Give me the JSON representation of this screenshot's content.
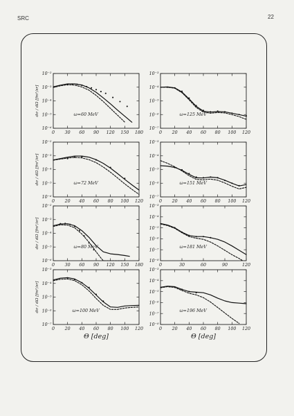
{
  "page": {
    "header_left": "SRC",
    "page_number": "22"
  },
  "chart_data": [
    {
      "type": "line",
      "annotation": "ω=60 MeV",
      "ylabel": "dσ / dΩ [fm²/sr]",
      "xlabel": "",
      "xlim": [
        0,
        180
      ],
      "ylim_exp": [
        -6,
        -2
      ],
      "log_y": true,
      "xticks": [
        0,
        30,
        60,
        90,
        120,
        150,
        180
      ],
      "yticks": [
        "10⁻²",
        "10⁻³",
        "10⁻⁴",
        "10⁻⁵",
        "10⁻⁶"
      ],
      "series": [
        {
          "style": "solid",
          "x": [
            0,
            15,
            30,
            45,
            60,
            75,
            90,
            105,
            120,
            135,
            150,
            165
          ],
          "log10_y": [
            -2.97,
            -2.85,
            -2.76,
            -2.76,
            -2.84,
            -3.05,
            -3.37,
            -3.78,
            -4.22,
            -4.68,
            -5.12,
            -5.56
          ]
        },
        {
          "style": "dashed",
          "x": [
            0,
            15,
            30,
            45,
            60,
            75,
            90,
            105,
            120,
            135,
            150
          ],
          "log10_y": [
            -3.02,
            -2.9,
            -2.82,
            -2.85,
            -2.98,
            -3.22,
            -3.6,
            -4.05,
            -4.55,
            -5.05,
            -5.55
          ]
        },
        {
          "style": "points",
          "x": [
            30,
            40,
            50,
            60,
            70,
            80,
            90,
            100,
            110,
            125,
            140,
            155
          ],
          "log10_y": [
            -2.82,
            -2.78,
            -2.79,
            -2.86,
            -2.96,
            -3.05,
            -3.18,
            -3.32,
            -3.45,
            -3.75,
            -4.05,
            -4.4
          ]
        }
      ]
    },
    {
      "type": "line",
      "annotation": "ω=125 MeV",
      "ylabel": "",
      "xlabel": "",
      "xlim": [
        0,
        120
      ],
      "ylim_exp": [
        -7,
        -3
      ],
      "log_y": true,
      "xticks": [
        0,
        20,
        40,
        60,
        80,
        100,
        120
      ],
      "yticks": [
        "10⁻³",
        "10⁻⁴",
        "10⁻⁵",
        "10⁻⁶",
        "10⁻⁷"
      ],
      "series": [
        {
          "style": "solid",
          "x": [
            0,
            10,
            20,
            30,
            40,
            50,
            60,
            70,
            80,
            90,
            100,
            110,
            120
          ],
          "log10_y": [
            -4.0,
            -3.98,
            -4.05,
            -4.35,
            -4.85,
            -5.4,
            -5.75,
            -5.82,
            -5.78,
            -5.8,
            -5.9,
            -6.0,
            -6.12
          ]
        },
        {
          "style": "dashed",
          "x": [
            0,
            10,
            20,
            30,
            40,
            50,
            60,
            70,
            80,
            90,
            100,
            110,
            120
          ],
          "log10_y": [
            -4.0,
            -4.0,
            -4.08,
            -4.4,
            -4.92,
            -5.48,
            -5.82,
            -5.9,
            -5.85,
            -5.88,
            -6.0,
            -6.15,
            -6.35
          ]
        },
        {
          "style": "points",
          "x": [
            10,
            20,
            30,
            40,
            50,
            60,
            70,
            80,
            90,
            100,
            110,
            120
          ],
          "log10_y": [
            -4.0,
            -4.05,
            -4.3,
            -4.8,
            -5.35,
            -5.7,
            -5.8,
            -5.75,
            -5.8,
            -5.9,
            -6.0,
            -6.1
          ]
        }
      ]
    },
    {
      "type": "line",
      "annotation": "ω=72 MeV",
      "ylabel": "dσ / dΩ [fm²/sr]",
      "xlabel": "",
      "xlim": [
        0,
        120
      ],
      "ylim_exp": [
        -6,
        -2
      ],
      "log_y": true,
      "xticks": [
        0,
        20,
        40,
        60,
        80,
        100,
        120
      ],
      "yticks": [
        "10⁻²",
        "10⁻³",
        "10⁻⁴",
        "10⁻⁵",
        "10⁻⁶"
      ],
      "series": [
        {
          "style": "solid",
          "x": [
            0,
            10,
            20,
            30,
            40,
            50,
            60,
            70,
            80,
            90,
            100,
            110,
            120
          ],
          "log10_y": [
            -3.3,
            -3.2,
            -3.1,
            -3.02,
            -3.02,
            -3.1,
            -3.28,
            -3.55,
            -3.9,
            -4.3,
            -4.72,
            -5.12,
            -5.5
          ]
        },
        {
          "style": "dashed",
          "x": [
            0,
            10,
            20,
            30,
            40,
            50,
            60,
            70,
            80,
            90,
            100,
            110,
            120
          ],
          "log10_y": [
            -3.32,
            -3.24,
            -3.16,
            -3.12,
            -3.15,
            -3.28,
            -3.5,
            -3.82,
            -4.2,
            -4.62,
            -5.05,
            -5.45,
            -5.82
          ]
        },
        {
          "style": "points",
          "x": [
            20,
            30,
            40,
            60,
            80,
            100
          ],
          "log10_y": [
            -3.2,
            -3.1,
            -3.08,
            -3.3,
            -3.85,
            -4.65
          ]
        }
      ]
    },
    {
      "type": "line",
      "annotation": "ω=151 MeV",
      "ylabel": "",
      "xlabel": "",
      "xlim": [
        0,
        120
      ],
      "ylim_exp": [
        -7,
        -3
      ],
      "log_y": true,
      "xticks": [
        0,
        20,
        40,
        60,
        80,
        100,
        120
      ],
      "yticks": [
        "10⁻³",
        "10⁻⁴",
        "10⁻⁵",
        "10⁻⁶",
        "10⁻⁷"
      ],
      "series": [
        {
          "style": "solid",
          "x": [
            0,
            10,
            20,
            30,
            40,
            50,
            60,
            70,
            80,
            90,
            100,
            110,
            120
          ],
          "log10_y": [
            -4.72,
            -4.75,
            -4.85,
            -5.05,
            -5.35,
            -5.6,
            -5.62,
            -5.55,
            -5.6,
            -5.78,
            -6.0,
            -6.2,
            -6.1
          ]
        },
        {
          "style": "dashed",
          "x": [
            0,
            10,
            20,
            30,
            40,
            50,
            60,
            70,
            80,
            90,
            100,
            110,
            120
          ],
          "log10_y": [
            -4.35,
            -4.55,
            -4.8,
            -5.1,
            -5.45,
            -5.72,
            -5.75,
            -5.7,
            -5.78,
            -5.98,
            -6.22,
            -6.42,
            -6.3
          ]
        },
        {
          "style": "points",
          "x": [
            20,
            30,
            40,
            50,
            60,
            70,
            80,
            90,
            100,
            110
          ],
          "log10_y": [
            -4.85,
            -5.02,
            -5.3,
            -5.55,
            -5.6,
            -5.55,
            -5.6,
            -5.8,
            -6.0,
            -6.18
          ]
        }
      ]
    },
    {
      "type": "line",
      "annotation": "ω=80 MeV",
      "ylabel": "dσ / dΩ [fm²/sr]",
      "xlabel": "",
      "xlim": [
        0,
        180
      ],
      "ylim_exp": [
        -6,
        -2
      ],
      "log_y": true,
      "xticks": [
        0,
        30,
        60,
        90,
        120,
        150,
        180
      ],
      "yticks": [
        "10⁻²",
        "10⁻³",
        "10⁻⁴",
        "10⁻⁵",
        "10⁻⁶"
      ],
      "series": [
        {
          "style": "solid",
          "x": [
            0,
            15,
            30,
            45,
            60,
            75,
            90,
            105,
            120,
            135,
            150,
            160
          ],
          "log10_y": [
            -3.45,
            -3.32,
            -3.3,
            -3.45,
            -3.8,
            -4.3,
            -4.9,
            -5.35,
            -5.5,
            -5.55,
            -5.62,
            -5.68
          ]
        },
        {
          "style": "dashed",
          "x": [
            0,
            15,
            30,
            45,
            60,
            75,
            90,
            100,
            105,
            120,
            135,
            150
          ],
          "log10_y": [
            -3.5,
            -3.38,
            -3.4,
            -3.6,
            -4.05,
            -4.65,
            -5.35,
            -5.8,
            -6.0,
            -6.0,
            -6.0,
            -6.0
          ]
        },
        {
          "style": "points",
          "x": [
            15,
            25,
            35,
            45,
            55,
            65,
            75,
            85
          ],
          "log10_y": [
            -3.3,
            -3.28,
            -3.35,
            -3.5,
            -3.8,
            -4.2,
            -4.7,
            -5.2
          ]
        }
      ]
    },
    {
      "type": "line",
      "annotation": "ω=181 MeV",
      "ylabel": "",
      "xlabel": "",
      "xlim": [
        0,
        120
      ],
      "ylim_exp": [
        -8,
        -3
      ],
      "log_y": true,
      "xticks": [
        0,
        30,
        60,
        90,
        120
      ],
      "yticks": [
        "10⁻³",
        "10⁻⁴",
        "10⁻⁵",
        "10⁻⁶",
        "10⁻⁷",
        "10⁻⁸"
      ],
      "series": [
        {
          "style": "solid",
          "x": [
            0,
            10,
            20,
            30,
            40,
            50,
            60,
            70,
            80,
            90,
            100,
            110,
            120
          ],
          "log10_y": [
            -4.6,
            -4.75,
            -5.0,
            -5.4,
            -5.7,
            -5.8,
            -5.8,
            -5.9,
            -6.05,
            -6.3,
            -6.65,
            -7.05,
            -7.45
          ]
        },
        {
          "style": "dashed",
          "x": [
            0,
            10,
            20,
            30,
            40,
            50,
            60,
            70,
            80,
            90,
            100,
            110,
            115
          ],
          "log10_y": [
            -4.65,
            -4.8,
            -5.05,
            -5.45,
            -5.8,
            -5.95,
            -6.05,
            -6.3,
            -6.65,
            -7.05,
            -7.45,
            -7.8,
            -8.0
          ]
        },
        {
          "style": "points",
          "x": [
            20,
            30,
            40,
            50,
            60,
            70
          ],
          "log10_y": [
            -5.0,
            -5.4,
            -5.7,
            -5.8,
            -5.8,
            -5.9
          ]
        }
      ]
    },
    {
      "type": "line",
      "annotation": "ω=100 MeV",
      "ylabel": "dσ / dΩ [fm²/sr]",
      "xlabel": "Θ [deg]",
      "xlim": [
        0,
        120
      ],
      "ylim_exp": [
        -7,
        -3
      ],
      "log_y": true,
      "xticks": [
        0,
        20,
        40,
        60,
        80,
        100,
        120
      ],
      "yticks": [
        "10⁻³",
        "10⁻⁴",
        "10⁻⁵",
        "10⁻⁶",
        "10⁻⁷"
      ],
      "series": [
        {
          "style": "solid",
          "x": [
            0,
            10,
            20,
            30,
            40,
            50,
            60,
            70,
            80,
            90,
            100,
            110,
            120
          ],
          "log10_y": [
            -3.75,
            -3.62,
            -3.58,
            -3.68,
            -3.95,
            -4.35,
            -4.85,
            -5.35,
            -5.72,
            -5.75,
            -5.65,
            -5.62,
            -5.6
          ]
        },
        {
          "style": "dashed",
          "x": [
            0,
            10,
            20,
            30,
            40,
            50,
            60,
            70,
            80,
            90,
            100,
            110,
            120
          ],
          "log10_y": [
            -3.8,
            -3.7,
            -3.68,
            -3.8,
            -4.1,
            -4.55,
            -5.1,
            -5.6,
            -5.9,
            -5.9,
            -5.8,
            -5.75,
            -5.72
          ]
        },
        {
          "style": "points",
          "x": [
            20,
            30,
            40,
            50,
            60,
            70
          ],
          "log10_y": [
            -3.6,
            -3.72,
            -3.95,
            -4.3,
            -4.8,
            -5.3
          ]
        }
      ]
    },
    {
      "type": "line",
      "annotation": "ω=196 MeV",
      "ylabel": "",
      "xlabel": "Θ [deg]",
      "xlim": [
        0,
        120
      ],
      "ylim_exp": [
        -8,
        -3
      ],
      "log_y": true,
      "xticks": [
        0,
        20,
        40,
        60,
        80,
        100,
        120
      ],
      "yticks": [
        "10⁻³",
        "10⁻⁴",
        "10⁻⁵",
        "10⁻⁶",
        "10⁻⁷",
        "10⁻⁸"
      ],
      "series": [
        {
          "style": "solid",
          "x": [
            0,
            10,
            20,
            30,
            40,
            50,
            60,
            70,
            80,
            90,
            100,
            110,
            120
          ],
          "log10_y": [
            -4.6,
            -4.5,
            -4.55,
            -4.8,
            -5.0,
            -5.05,
            -5.1,
            -5.3,
            -5.6,
            -5.85,
            -6.0,
            -6.05,
            -6.1
          ]
        },
        {
          "style": "dashed",
          "x": [
            0,
            10,
            20,
            30,
            40,
            50,
            60,
            70,
            80,
            90,
            100,
            110
          ],
          "log10_y": [
            -4.65,
            -4.55,
            -4.62,
            -4.9,
            -5.15,
            -5.3,
            -5.55,
            -5.95,
            -6.45,
            -6.95,
            -7.45,
            -7.9
          ]
        },
        {
          "style": "points",
          "x": [
            20,
            30,
            40,
            50
          ],
          "log10_y": [
            -4.6,
            -4.8,
            -5.0,
            -5.1
          ]
        }
      ]
    }
  ]
}
